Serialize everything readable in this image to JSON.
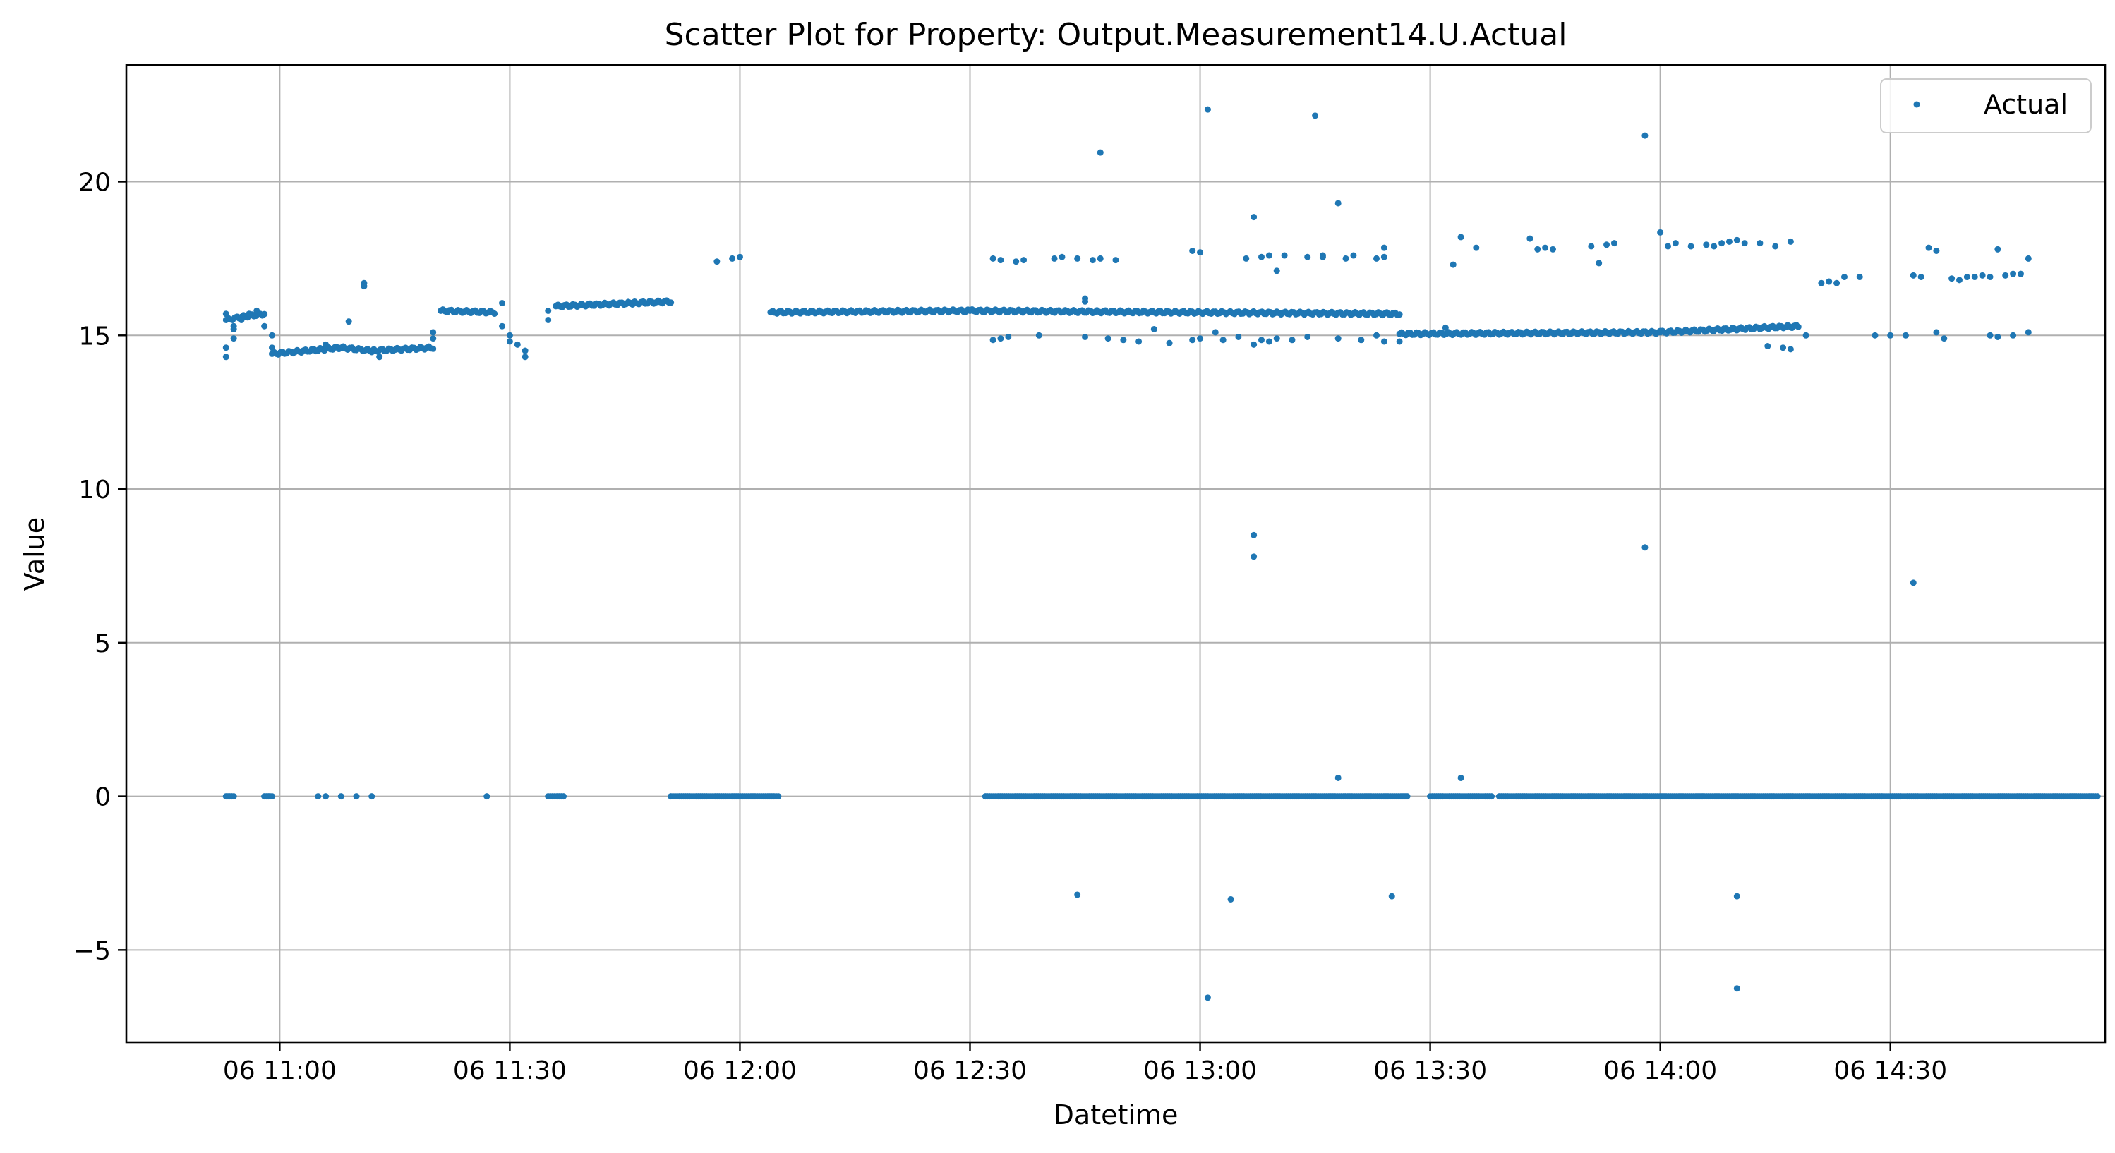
{
  "chart_data": {
    "type": "scatter",
    "title": "Scatter Plot for Property: Output.Measurement14.U.Actual",
    "xlabel": "Datetime",
    "ylabel": "Value",
    "xlim": [
      "06 10:40",
      "06 14:58"
    ],
    "ylim": [
      -8.0,
      23.8
    ],
    "grid": true,
    "legend_position": "top-right",
    "colors": {
      "series": "#1f77b4",
      "grid": "#b0b0b0"
    },
    "x_ticks": [
      {
        "t": "06 11:00",
        "label": "06 11:00"
      },
      {
        "t": "06 11:30",
        "label": "06 11:30"
      },
      {
        "t": "06 12:00",
        "label": "06 12:00"
      },
      {
        "t": "06 12:30",
        "label": "06 12:30"
      },
      {
        "t": "06 13:00",
        "label": "06 13:00"
      },
      {
        "t": "06 13:30",
        "label": "06 13:30"
      },
      {
        "t": "06 14:00",
        "label": "06 14:00"
      },
      {
        "t": "06 14:30",
        "label": "06 14:30"
      }
    ],
    "y_ticks": [
      {
        "v": -5,
        "label": "−5"
      },
      {
        "v": 0,
        "label": "0"
      },
      {
        "v": 5,
        "label": "5"
      },
      {
        "v": 10,
        "label": "10"
      },
      {
        "v": 15,
        "label": "15"
      },
      {
        "v": 20,
        "label": "20"
      }
    ],
    "series": [
      {
        "name": "Actual",
        "segments": [
          {
            "x0": "06 10:53",
            "x1": "06 10:55",
            "y0": 15.5,
            "y1": 15.6
          },
          {
            "x0": "06 10:55",
            "x1": "06 10:58",
            "y0": 15.6,
            "y1": 15.7
          },
          {
            "x0": "06 10:59",
            "x1": "06 11:08",
            "y0": 14.4,
            "y1": 14.6
          },
          {
            "x0": "06 11:08",
            "x1": "06 11:12",
            "y0": 14.6,
            "y1": 14.5
          },
          {
            "x0": "06 11:12",
            "x1": "06 11:20",
            "y0": 14.5,
            "y1": 14.6
          },
          {
            "x0": "06 11:21",
            "x1": "06 11:28",
            "y0": 15.8,
            "y1": 15.75
          },
          {
            "x0": "06 11:36",
            "x1": "06 11:46",
            "y0": 15.95,
            "y1": 16.05
          },
          {
            "x0": "06 11:46",
            "x1": "06 11:51",
            "y0": 16.05,
            "y1": 16.1
          },
          {
            "x0": "06 12:04",
            "x1": "06 12:30",
            "y0": 15.75,
            "y1": 15.8
          },
          {
            "x0": "06 12:30",
            "x1": "06 13:26",
            "y0": 15.8,
            "y1": 15.7
          },
          {
            "x0": "06 13:26",
            "x1": "06 14:00",
            "y0": 15.05,
            "y1": 15.1
          },
          {
            "x0": "06 14:00",
            "x1": "06 14:18",
            "y0": 15.1,
            "y1": 15.3
          },
          {
            "x0": "06 10:53",
            "x1": "06 10:54",
            "y0": 0,
            "y1": 0
          },
          {
            "x0": "06 10:58",
            "x1": "06 10:59",
            "y0": 0,
            "y1": 0
          },
          {
            "x0": "06 11:35",
            "x1": "06 11:37",
            "y0": 0,
            "y1": 0
          },
          {
            "x0": "06 11:51",
            "x1": "06 12:05",
            "y0": 0,
            "y1": 0
          },
          {
            "x0": "06 12:32",
            "x1": "06 13:27",
            "y0": 0,
            "y1": 0
          },
          {
            "x0": "06 13:30",
            "x1": "06 13:38",
            "y0": 0,
            "y1": 0
          },
          {
            "x0": "06 13:39",
            "x1": "06 14:57",
            "y0": 0,
            "y1": 0
          }
        ],
        "points": [
          [
            "06 10:53",
            14.6
          ],
          [
            "06 10:53",
            14.3
          ],
          [
            "06 10:53",
            15.7
          ],
          [
            "06 10:54",
            14.9
          ],
          [
            "06 10:54",
            15.3
          ],
          [
            "06 10:54",
            15.2
          ],
          [
            "06 10:55",
            15.5
          ],
          [
            "06 10:56",
            15.7
          ],
          [
            "06 10:57",
            15.8
          ],
          [
            "06 10:58",
            15.3
          ],
          [
            "06 10:59",
            15.0
          ],
          [
            "06 10:59",
            14.6
          ],
          [
            "06 11:05",
            14.5
          ],
          [
            "06 11:06",
            14.7
          ],
          [
            "06 11:09",
            15.45
          ],
          [
            "06 11:11",
            16.7
          ],
          [
            "06 11:11",
            16.6
          ],
          [
            "06 11:13",
            14.3
          ],
          [
            "06 11:20",
            15.1
          ],
          [
            "06 11:20",
            14.9
          ],
          [
            "06 11:29",
            16.05
          ],
          [
            "06 11:29",
            15.3
          ],
          [
            "06 11:30",
            15.0
          ],
          [
            "06 11:30",
            14.8
          ],
          [
            "06 11:31",
            14.7
          ],
          [
            "06 11:32",
            14.5
          ],
          [
            "06 11:32",
            14.3
          ],
          [
            "06 11:35",
            15.5
          ],
          [
            "06 11:35",
            15.8
          ],
          [
            "06 11:57",
            17.4
          ],
          [
            "06 11:59",
            17.5
          ],
          [
            "06 12:00",
            17.55
          ],
          [
            "06 12:33",
            17.5
          ],
          [
            "06 12:34",
            17.45
          ],
          [
            "06 12:36",
            17.4
          ],
          [
            "06 12:37",
            17.45
          ],
          [
            "06 12:41",
            17.5
          ],
          [
            "06 12:42",
            17.55
          ],
          [
            "06 12:44",
            17.5
          ],
          [
            "06 12:46",
            17.45
          ],
          [
            "06 12:47",
            17.5
          ],
          [
            "06 12:49",
            17.45
          ],
          [
            "06 12:45",
            16.2
          ],
          [
            "06 12:45",
            16.1
          ],
          [
            "06 12:47",
            20.95
          ],
          [
            "06 13:01",
            22.35
          ],
          [
            "06 13:15",
            22.15
          ],
          [
            "06 13:07",
            18.85
          ],
          [
            "06 13:18",
            19.3
          ],
          [
            "06 12:59",
            17.75
          ],
          [
            "06 13:00",
            17.7
          ],
          [
            "06 13:06",
            17.5
          ],
          [
            "06 13:08",
            17.55
          ],
          [
            "06 13:09",
            17.6
          ],
          [
            "06 13:10",
            17.1
          ],
          [
            "06 13:11",
            17.6
          ],
          [
            "06 13:14",
            17.55
          ],
          [
            "06 13:16",
            17.6
          ],
          [
            "06 13:16",
            17.55
          ],
          [
            "06 13:19",
            17.5
          ],
          [
            "06 13:20",
            17.6
          ],
          [
            "06 13:24",
            17.55
          ],
          [
            "06 13:24",
            17.85
          ],
          [
            "06 13:23",
            17.5
          ],
          [
            "06 12:33",
            14.85
          ],
          [
            "06 12:34",
            14.9
          ],
          [
            "06 12:35",
            14.95
          ],
          [
            "06 12:39",
            15.0
          ],
          [
            "06 12:45",
            14.95
          ],
          [
            "06 12:48",
            14.9
          ],
          [
            "06 12:50",
            14.85
          ],
          [
            "06 12:52",
            14.8
          ],
          [
            "06 12:54",
            15.2
          ],
          [
            "06 12:56",
            14.75
          ],
          [
            "06 12:59",
            14.85
          ],
          [
            "06 13:00",
            14.9
          ],
          [
            "06 13:02",
            15.1
          ],
          [
            "06 13:03",
            14.85
          ],
          [
            "06 13:05",
            14.95
          ],
          [
            "06 13:07",
            14.7
          ],
          [
            "06 13:08",
            14.85
          ],
          [
            "06 13:09",
            14.8
          ],
          [
            "06 13:10",
            14.9
          ],
          [
            "06 13:12",
            14.85
          ],
          [
            "06 13:14",
            14.95
          ],
          [
            "06 13:18",
            14.9
          ],
          [
            "06 13:21",
            14.85
          ],
          [
            "06 13:23",
            15.0
          ],
          [
            "06 13:24",
            14.8
          ],
          [
            "06 13:26",
            14.8
          ],
          [
            "06 13:32",
            15.25
          ],
          [
            "06 13:33",
            17.3
          ],
          [
            "06 13:34",
            18.2
          ],
          [
            "06 13:36",
            17.85
          ],
          [
            "06 13:43",
            18.15
          ],
          [
            "06 13:44",
            17.8
          ],
          [
            "06 13:45",
            17.85
          ],
          [
            "06 13:46",
            17.8
          ],
          [
            "06 13:51",
            17.9
          ],
          [
            "06 13:52",
            17.35
          ],
          [
            "06 13:53",
            17.95
          ],
          [
            "06 13:54",
            18.0
          ],
          [
            "06 13:58",
            21.5
          ],
          [
            "06 13:58",
            8.1
          ],
          [
            "06 14:00",
            18.35
          ],
          [
            "06 14:01",
            17.9
          ],
          [
            "06 14:02",
            18.0
          ],
          [
            "06 14:04",
            17.9
          ],
          [
            "06 14:06",
            17.95
          ],
          [
            "06 14:07",
            17.9
          ],
          [
            "06 14:08",
            18.0
          ],
          [
            "06 14:09",
            18.05
          ],
          [
            "06 14:10",
            18.1
          ],
          [
            "06 14:11",
            18.0
          ],
          [
            "06 14:13",
            18.0
          ],
          [
            "06 14:15",
            17.9
          ],
          [
            "06 14:17",
            18.05
          ],
          [
            "06 14:16",
            14.6
          ],
          [
            "06 14:17",
            14.55
          ],
          [
            "06 14:14",
            14.65
          ],
          [
            "06 14:19",
            15.0
          ],
          [
            "06 14:21",
            16.7
          ],
          [
            "06 14:22",
            16.75
          ],
          [
            "06 14:23",
            16.7
          ],
          [
            "06 14:24",
            16.9
          ],
          [
            "06 14:26",
            16.9
          ],
          [
            "06 14:28",
            15.0
          ],
          [
            "06 14:30",
            15.0
          ],
          [
            "06 14:33",
            16.95
          ],
          [
            "06 14:34",
            16.9
          ],
          [
            "06 14:32",
            15.0
          ],
          [
            "06 14:35",
            17.85
          ],
          [
            "06 14:36",
            17.75
          ],
          [
            "06 14:36",
            15.1
          ],
          [
            "06 14:37",
            14.9
          ],
          [
            "06 14:38",
            16.85
          ],
          [
            "06 14:39",
            16.8
          ],
          [
            "06 14:40",
            16.9
          ],
          [
            "06 14:41",
            16.9
          ],
          [
            "06 14:42",
            16.95
          ],
          [
            "06 14:43",
            16.9
          ],
          [
            "06 14:44",
            17.8
          ],
          [
            "06 14:45",
            16.95
          ],
          [
            "06 14:46",
            17.0
          ],
          [
            "06 14:47",
            17.0
          ],
          [
            "06 14:48",
            17.5
          ],
          [
            "06 14:43",
            15.0
          ],
          [
            "06 14:44",
            14.95
          ],
          [
            "06 14:46",
            15.0
          ],
          [
            "06 14:48",
            15.1
          ],
          [
            "06 13:07",
            7.8
          ],
          [
            "06 13:07",
            8.5
          ],
          [
            "06 14:33",
            6.95
          ],
          [
            "06 13:18",
            0.6
          ],
          [
            "06 13:34",
            0.6
          ],
          [
            "06 12:44",
            -3.2
          ],
          [
            "06 13:04",
            -3.35
          ],
          [
            "06 13:25",
            -3.25
          ],
          [
            "06 14:10",
            -3.25
          ],
          [
            "06 13:01",
            -6.55
          ],
          [
            "06 14:10",
            -6.25
          ],
          [
            "06 11:05",
            0
          ],
          [
            "06 11:06",
            0
          ],
          [
            "06 11:08",
            0
          ],
          [
            "06 11:10",
            0
          ],
          [
            "06 11:12",
            0
          ],
          [
            "06 11:27",
            0
          ]
        ]
      }
    ]
  }
}
